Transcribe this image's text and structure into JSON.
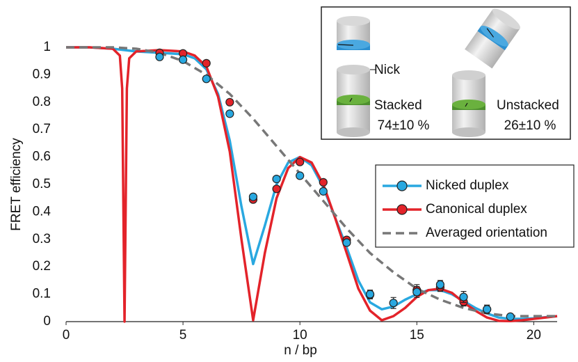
{
  "chart_data": {
    "type": "line",
    "x_label": "n / bp",
    "y_label": "FRET efficiency",
    "xlim": [
      0,
      21
    ],
    "xticks": [
      0,
      5,
      10,
      15,
      20
    ],
    "ylim": [
      0,
      1
    ],
    "yticks": [
      0,
      0.1,
      0.2,
      0.3,
      0.4,
      0.5,
      0.6,
      0.7,
      0.8,
      0.9,
      1
    ],
    "legend": "right",
    "series": [
      {
        "name": "Nicked duplex",
        "color": "#29a8e0",
        "dash": false,
        "x": [
          0,
          1,
          2,
          3,
          4,
          5,
          5.5,
          6,
          6.5,
          7,
          7.5,
          8,
          8.5,
          9,
          9.5,
          10,
          10.5,
          11,
          11.5,
          12,
          12.5,
          13,
          13.5,
          14,
          14.5,
          15,
          15.5,
          16,
          16.5,
          17,
          17.5,
          18,
          18.5,
          19,
          19.5,
          20,
          21
        ],
        "values": [
          1,
          1,
          0.995,
          0.985,
          0.98,
          0.975,
          0.96,
          0.92,
          0.83,
          0.66,
          0.42,
          0.21,
          0.35,
          0.5,
          0.58,
          0.6,
          0.57,
          0.49,
          0.38,
          0.27,
          0.15,
          0.07,
          0.045,
          0.055,
          0.08,
          0.1,
          0.115,
          0.115,
          0.1,
          0.075,
          0.05,
          0.03,
          0.015,
          0.01,
          0.01,
          0.012,
          0.02
        ],
        "points": {
          "x": [
            4,
            5,
            6,
            7,
            8,
            9,
            10,
            11,
            12,
            13,
            14,
            15,
            16,
            17,
            18,
            19
          ],
          "values": [
            0.965,
            0.955,
            0.885,
            0.758,
            0.455,
            0.52,
            0.532,
            0.475,
            0.288,
            0.1,
            0.068,
            0.108,
            0.135,
            0.09,
            0.045,
            0.018
          ],
          "errors": [
            0.01,
            0.01,
            0.01,
            0.01,
            0.01,
            0.01,
            0.01,
            0.01,
            0.01,
            0.015,
            0.02,
            0.02,
            0.015,
            0.02,
            0.015,
            0.01
          ]
        }
      },
      {
        "name": "Canonical duplex",
        "color": "#e3232a",
        "dash": false,
        "x": [
          0,
          1,
          2,
          2.3,
          2.4,
          2.5,
          2.6,
          2.7,
          3,
          4,
          5,
          5.5,
          6,
          6.5,
          7,
          7.5,
          8,
          8.5,
          9,
          9.5,
          10,
          10.5,
          11,
          11.5,
          12,
          12.5,
          13,
          13.5,
          14,
          14.5,
          15,
          15.5,
          16,
          16.5,
          17,
          17.5,
          18,
          18.5,
          19,
          19.5,
          20,
          20.5,
          21
        ],
        "values": [
          1,
          1,
          0.995,
          0.97,
          0.85,
          0,
          0.85,
          0.96,
          0.985,
          0.99,
          0.985,
          0.97,
          0.93,
          0.82,
          0.62,
          0.3,
          0.005,
          0.25,
          0.45,
          0.56,
          0.6,
          0.58,
          0.5,
          0.38,
          0.25,
          0.12,
          0.04,
          0.005,
          0.02,
          0.05,
          0.09,
          0.115,
          0.12,
          0.105,
          0.07,
          0.04,
          0.015,
          0.003,
          0.002,
          0.005,
          0.01,
          0.015,
          0.02
        ],
        "points": {
          "x": [
            4,
            5,
            6,
            7,
            8,
            9,
            10,
            11,
            12,
            13,
            15,
            16,
            17,
            18
          ],
          "values": [
            0.98,
            0.978,
            0.942,
            0.8,
            0.445,
            0.484,
            0.582,
            0.508,
            0.298,
            0.098,
            0.115,
            0.125,
            0.072,
            0.045
          ],
          "errors": [
            0.01,
            0.01,
            0.01,
            0.01,
            0.01,
            0.01,
            0.01,
            0.01,
            0.01,
            0.015,
            0.02,
            0.015,
            0.015,
            0.015
          ]
        }
      },
      {
        "name": "Averaged orientation",
        "color": "#777777",
        "dash": true,
        "x": [
          0,
          2,
          3,
          4,
          5,
          6,
          7,
          8,
          9,
          10,
          11,
          12,
          13,
          14,
          15,
          16,
          17,
          18,
          19,
          20,
          21
        ],
        "values": [
          1,
          1,
          0.995,
          0.98,
          0.95,
          0.9,
          0.83,
          0.74,
          0.64,
          0.54,
          0.44,
          0.34,
          0.25,
          0.18,
          0.12,
          0.08,
          0.05,
          0.03,
          0.02,
          0.02,
          0.02
        ]
      }
    ],
    "inset": {
      "nick": "Nick",
      "stacked": "Stacked",
      "stacked_pct": "74±10 %",
      "unstacked": "Unstacked",
      "unstacked_pct": "26±10 %"
    }
  }
}
